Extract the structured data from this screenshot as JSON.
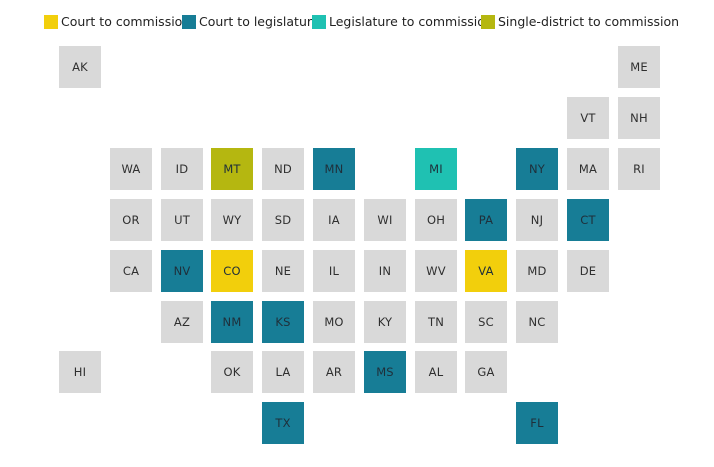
{
  "legend": [
    {
      "key": "court_to_commission",
      "label": "Court to commission",
      "color": "#f2cf0c"
    },
    {
      "key": "court_to_legislature",
      "label": "Court to legislature",
      "color": "#177d96"
    },
    {
      "key": "legislature_to_commission",
      "label": "Legislature to commission",
      "color": "#1fc1b2"
    },
    {
      "key": "single_district_to_commission",
      "label": "Single-district to commission",
      "color": "#b5b710"
    }
  ],
  "default_color": "#d9d9d9",
  "states": [
    {
      "abbr": "AK",
      "col": 0,
      "row": 0,
      "category": null
    },
    {
      "abbr": "ME",
      "col": 11,
      "row": 0,
      "category": null
    },
    {
      "abbr": "VT",
      "col": 10,
      "row": 1,
      "category": null
    },
    {
      "abbr": "NH",
      "col": 11,
      "row": 1,
      "category": null
    },
    {
      "abbr": "WA",
      "col": 1,
      "row": 2,
      "category": null
    },
    {
      "abbr": "ID",
      "col": 2,
      "row": 2,
      "category": null
    },
    {
      "abbr": "MT",
      "col": 3,
      "row": 2,
      "category": "single_district_to_commission"
    },
    {
      "abbr": "ND",
      "col": 4,
      "row": 2,
      "category": null
    },
    {
      "abbr": "MN",
      "col": 5,
      "row": 2,
      "category": "court_to_legislature"
    },
    {
      "abbr": "MI",
      "col": 7,
      "row": 2,
      "category": "legislature_to_commission"
    },
    {
      "abbr": "NY",
      "col": 9,
      "row": 2,
      "category": "court_to_legislature"
    },
    {
      "abbr": "MA",
      "col": 10,
      "row": 2,
      "category": null
    },
    {
      "abbr": "RI",
      "col": 11,
      "row": 2,
      "category": null
    },
    {
      "abbr": "OR",
      "col": 1,
      "row": 3,
      "category": null
    },
    {
      "abbr": "UT",
      "col": 2,
      "row": 3,
      "category": null
    },
    {
      "abbr": "WY",
      "col": 3,
      "row": 3,
      "category": null
    },
    {
      "abbr": "SD",
      "col": 4,
      "row": 3,
      "category": null
    },
    {
      "abbr": "IA",
      "col": 5,
      "row": 3,
      "category": null
    },
    {
      "abbr": "WI",
      "col": 6,
      "row": 3,
      "category": null
    },
    {
      "abbr": "OH",
      "col": 7,
      "row": 3,
      "category": null
    },
    {
      "abbr": "PA",
      "col": 8,
      "row": 3,
      "category": "court_to_legislature"
    },
    {
      "abbr": "NJ",
      "col": 9,
      "row": 3,
      "category": null
    },
    {
      "abbr": "CT",
      "col": 10,
      "row": 3,
      "category": "court_to_legislature"
    },
    {
      "abbr": "CA",
      "col": 1,
      "row": 4,
      "category": null
    },
    {
      "abbr": "NV",
      "col": 2,
      "row": 4,
      "category": "court_to_legislature"
    },
    {
      "abbr": "CO",
      "col": 3,
      "row": 4,
      "category": "court_to_commission"
    },
    {
      "abbr": "NE",
      "col": 4,
      "row": 4,
      "category": null
    },
    {
      "abbr": "IL",
      "col": 5,
      "row": 4,
      "category": null
    },
    {
      "abbr": "IN",
      "col": 6,
      "row": 4,
      "category": null
    },
    {
      "abbr": "WV",
      "col": 7,
      "row": 4,
      "category": null
    },
    {
      "abbr": "VA",
      "col": 8,
      "row": 4,
      "category": "court_to_commission"
    },
    {
      "abbr": "MD",
      "col": 9,
      "row": 4,
      "category": null
    },
    {
      "abbr": "DE",
      "col": 10,
      "row": 4,
      "category": null
    },
    {
      "abbr": "AZ",
      "col": 2,
      "row": 5,
      "category": null
    },
    {
      "abbr": "NM",
      "col": 3,
      "row": 5,
      "category": "court_to_legislature"
    },
    {
      "abbr": "KS",
      "col": 4,
      "row": 5,
      "category": "court_to_legislature"
    },
    {
      "abbr": "MO",
      "col": 5,
      "row": 5,
      "category": null
    },
    {
      "abbr": "KY",
      "col": 6,
      "row": 5,
      "category": null
    },
    {
      "abbr": "TN",
      "col": 7,
      "row": 5,
      "category": null
    },
    {
      "abbr": "SC",
      "col": 8,
      "row": 5,
      "category": null
    },
    {
      "abbr": "NC",
      "col": 9,
      "row": 5,
      "category": null
    },
    {
      "abbr": "HI",
      "col": 0,
      "row": 6,
      "category": null
    },
    {
      "abbr": "OK",
      "col": 3,
      "row": 6,
      "category": null
    },
    {
      "abbr": "LA",
      "col": 4,
      "row": 6,
      "category": null
    },
    {
      "abbr": "AR",
      "col": 5,
      "row": 6,
      "category": null
    },
    {
      "abbr": "MS",
      "col": 6,
      "row": 6,
      "category": "court_to_legislature"
    },
    {
      "abbr": "AL",
      "col": 7,
      "row": 6,
      "category": null
    },
    {
      "abbr": "GA",
      "col": 8,
      "row": 6,
      "category": null
    },
    {
      "abbr": "TX",
      "col": 4,
      "row": 7,
      "category": "court_to_legislature"
    },
    {
      "abbr": "FL",
      "col": 9,
      "row": 7,
      "category": "court_to_legislature"
    }
  ]
}
